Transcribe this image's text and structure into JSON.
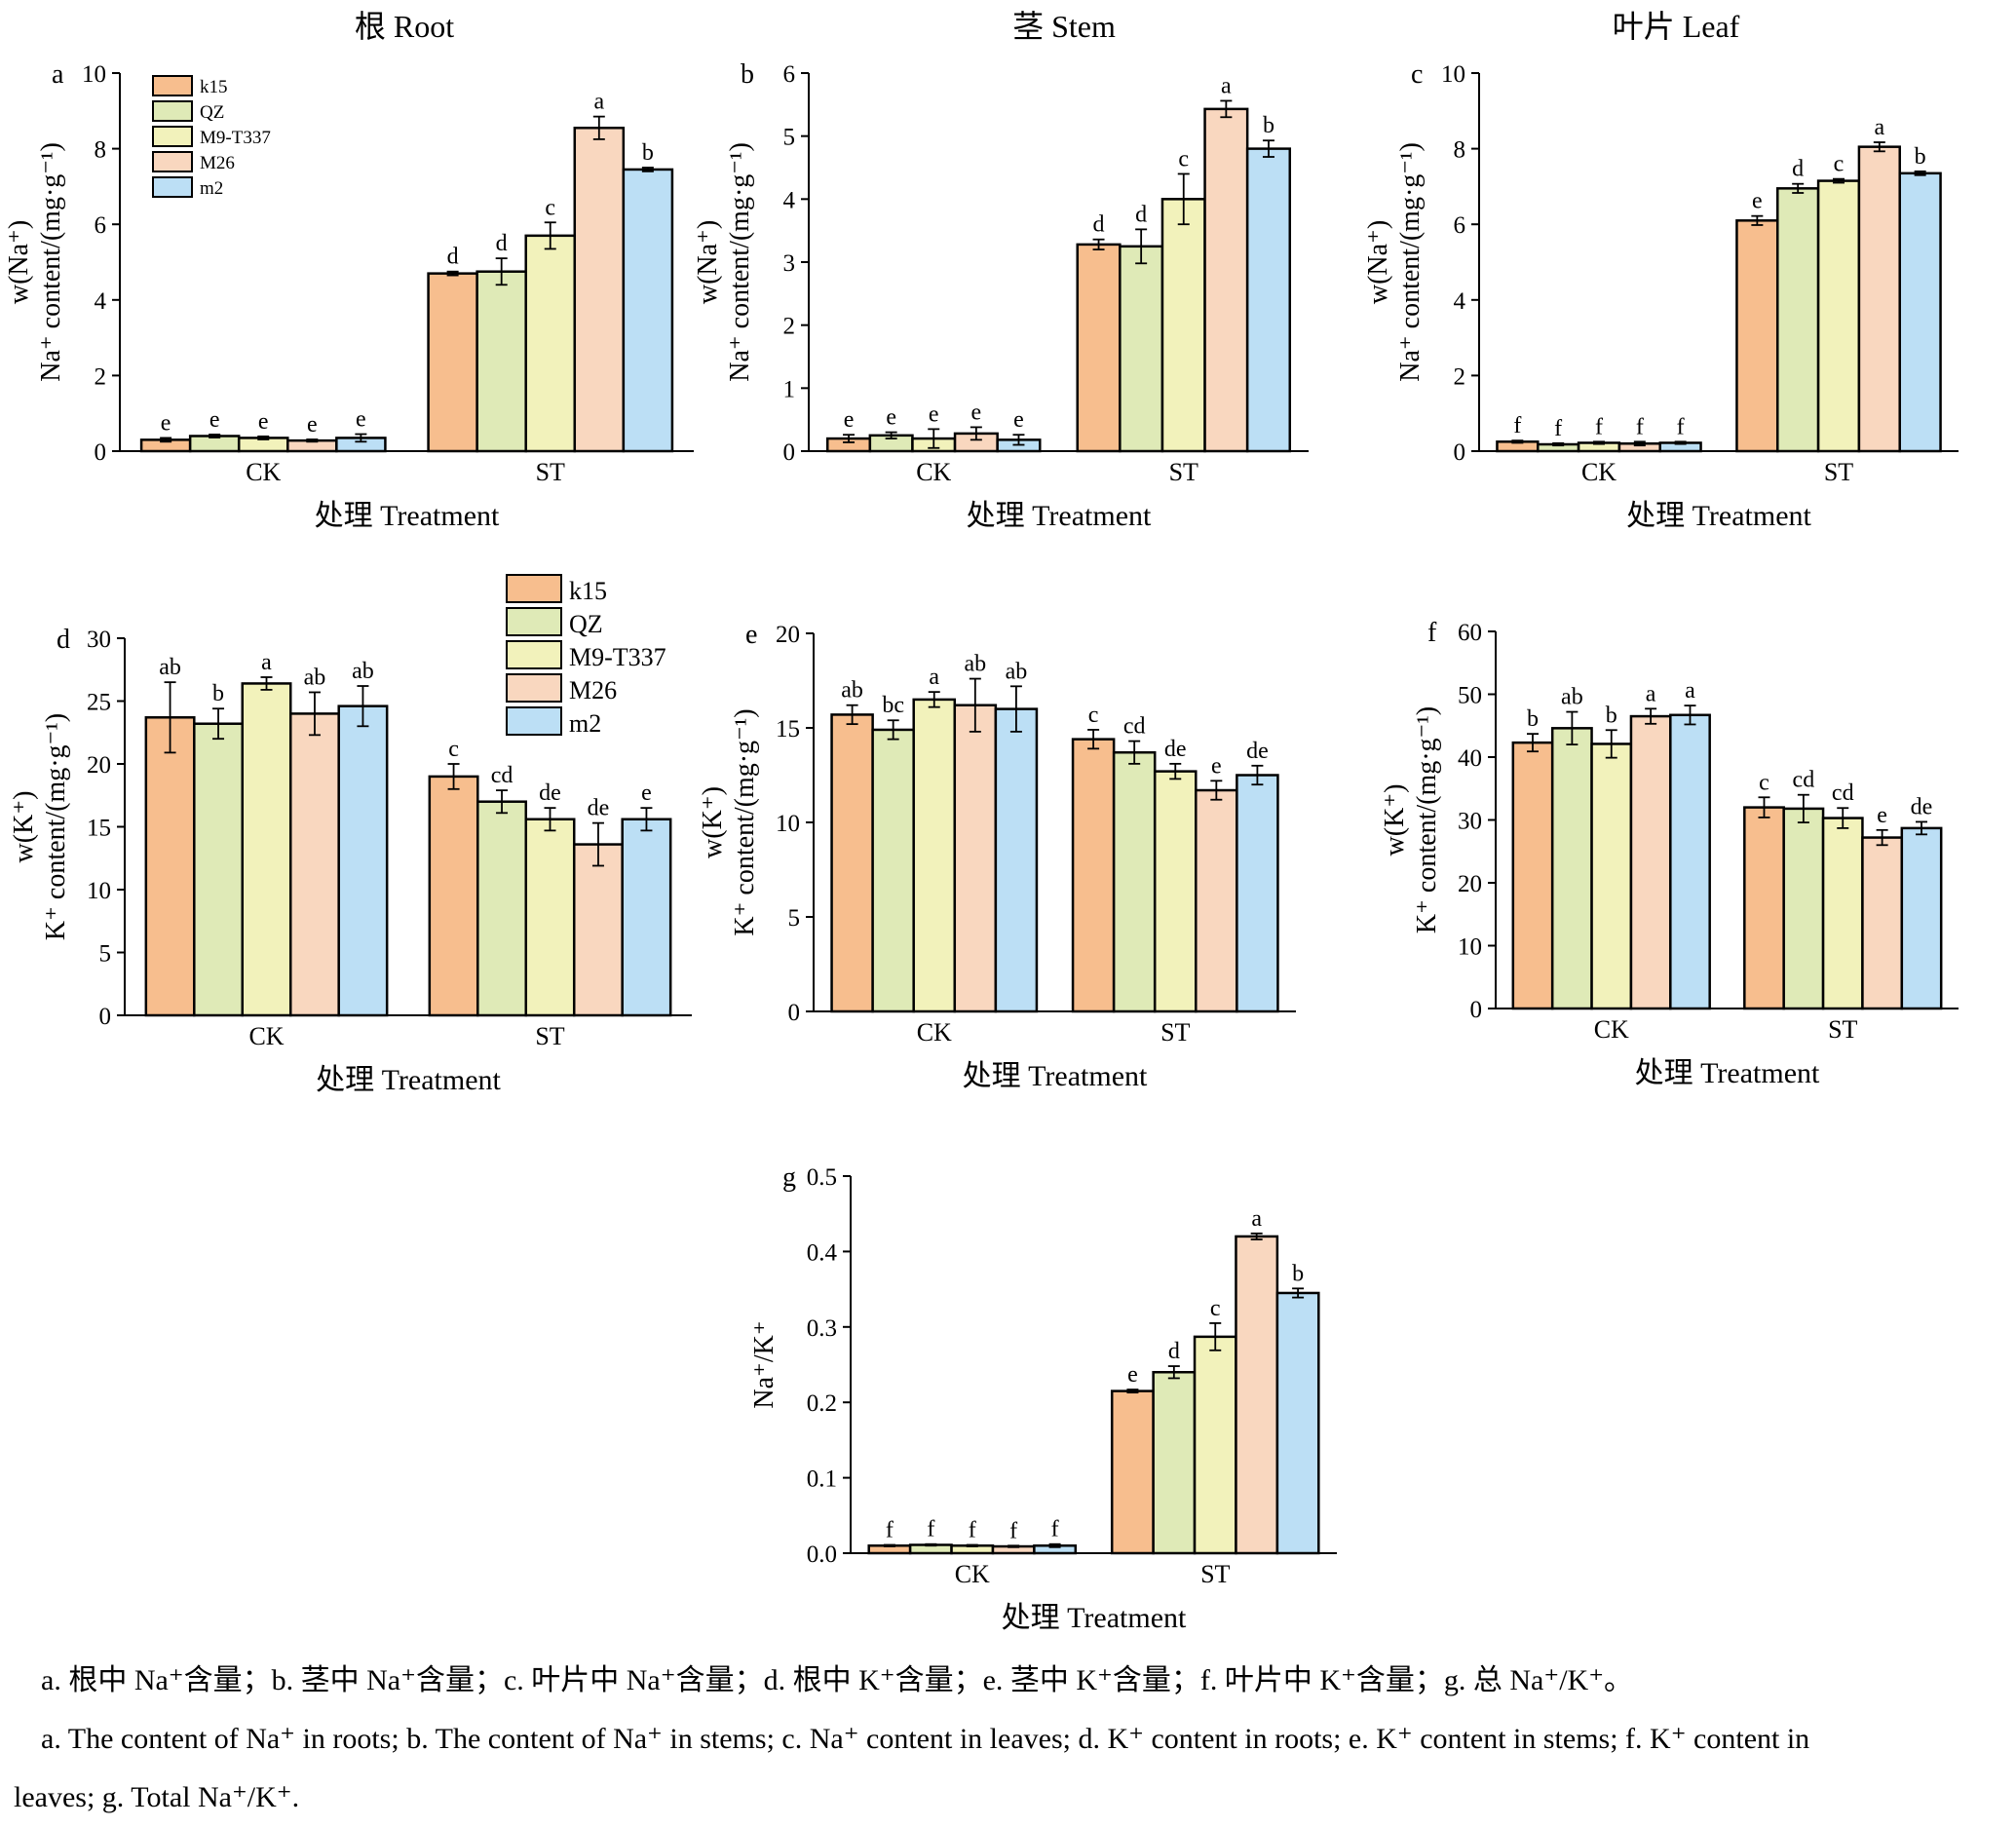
{
  "colors": {
    "k15": "#f7be8e",
    "QZ": "#dfeab7",
    "M9-T337": "#f2f2bb",
    "M26": "#f9d7bf",
    "m2": "#bcdff5"
  },
  "column_titles": [
    "根 Root",
    "茎 Stem",
    "叶片 Leaf"
  ],
  "captions": {
    "zh": "a. 根中 Na⁺含量；b. 茎中 Na⁺含量；c. 叶片中 Na⁺含量；d. 根中 K⁺含量；e. 茎中 K⁺含量；f. 叶片中 K⁺含量；g. 总 Na⁺/K⁺。",
    "en_line1": "a. The content of Na⁺ in roots; b. The content of Na⁺ in stems; c. Na⁺ content in leaves; d. K⁺ content in roots; e. K⁺ content in stems; f. K⁺ content in",
    "en_line2": "leaves; g. Total Na⁺/K⁺."
  },
  "chart_data": [
    {
      "id": "a",
      "type": "bar",
      "panel_label": "a",
      "ylabel_line1": "w(Na⁺)",
      "ylabel_line2": "Na⁺ content/(mg·g⁻¹)",
      "xlabel": "处理 Treatment",
      "categories": [
        "CK",
        "ST"
      ],
      "ylim": [
        0,
        10
      ],
      "yticks": [
        0,
        2,
        4,
        6,
        8,
        10
      ],
      "legend": [
        "k15",
        "QZ",
        "M9-T337",
        "M26",
        "m2"
      ],
      "series": [
        {
          "name": "k15",
          "values": [
            0.3,
            4.7
          ],
          "errors": [
            0.05,
            0.05
          ],
          "letters": [
            "e",
            "d"
          ]
        },
        {
          "name": "QZ",
          "values": [
            0.4,
            4.75
          ],
          "errors": [
            0.04,
            0.35
          ],
          "letters": [
            "e",
            "d"
          ]
        },
        {
          "name": "M9-T337",
          "values": [
            0.35,
            5.7
          ],
          "errors": [
            0.04,
            0.35
          ],
          "letters": [
            "e",
            "c"
          ]
        },
        {
          "name": "M26",
          "values": [
            0.28,
            8.55
          ],
          "errors": [
            0.03,
            0.3
          ],
          "letters": [
            "e",
            "a"
          ]
        },
        {
          "name": "m2",
          "values": [
            0.35,
            7.45
          ],
          "errors": [
            0.1,
            0.05
          ],
          "letters": [
            "e",
            "b"
          ]
        }
      ]
    },
    {
      "id": "b",
      "type": "bar",
      "panel_label": "b",
      "ylabel_line1": "w(Na⁺)",
      "ylabel_line2": "Na⁺ content/(mg·g⁻¹)",
      "xlabel": "处理 Treatment",
      "categories": [
        "CK",
        "ST"
      ],
      "ylim": [
        0,
        6
      ],
      "yticks": [
        0,
        1,
        2,
        3,
        4,
        5,
        6
      ],
      "series": [
        {
          "name": "k15",
          "values": [
            0.2,
            3.28
          ],
          "errors": [
            0.06,
            0.08
          ],
          "letters": [
            "e",
            "d"
          ]
        },
        {
          "name": "QZ",
          "values": [
            0.25,
            3.25
          ],
          "errors": [
            0.05,
            0.27
          ],
          "letters": [
            "e",
            "d"
          ]
        },
        {
          "name": "M9-T337",
          "values": [
            0.2,
            4.0
          ],
          "errors": [
            0.15,
            0.4
          ],
          "letters": [
            "e",
            "c"
          ]
        },
        {
          "name": "M26",
          "values": [
            0.28,
            5.43
          ],
          "errors": [
            0.1,
            0.13
          ],
          "letters": [
            "e",
            "a"
          ]
        },
        {
          "name": "m2",
          "values": [
            0.18,
            4.8
          ],
          "errors": [
            0.08,
            0.13
          ],
          "letters": [
            "e",
            "b"
          ]
        }
      ]
    },
    {
      "id": "c",
      "type": "bar",
      "panel_label": "c",
      "ylabel_line1": "w(Na⁺)",
      "ylabel_line2": "Na⁺ content/(mg·g⁻¹)",
      "xlabel": "处理 Treatment",
      "categories": [
        "CK",
        "ST"
      ],
      "ylim": [
        0,
        10
      ],
      "yticks": [
        0,
        2,
        4,
        6,
        8,
        10
      ],
      "series": [
        {
          "name": "k15",
          "values": [
            0.25,
            6.1
          ],
          "errors": [
            0.03,
            0.12
          ],
          "letters": [
            "f",
            "e"
          ]
        },
        {
          "name": "QZ",
          "values": [
            0.18,
            6.95
          ],
          "errors": [
            0.03,
            0.12
          ],
          "letters": [
            "f",
            "d"
          ]
        },
        {
          "name": "M9-T337",
          "values": [
            0.22,
            7.15
          ],
          "errors": [
            0.03,
            0.05
          ],
          "letters": [
            "f",
            "c"
          ]
        },
        {
          "name": "M26",
          "values": [
            0.2,
            8.05
          ],
          "errors": [
            0.05,
            0.12
          ],
          "letters": [
            "f",
            "a"
          ]
        },
        {
          "name": "m2",
          "values": [
            0.22,
            7.35
          ],
          "errors": [
            0.03,
            0.05
          ],
          "letters": [
            "f",
            "b"
          ]
        }
      ]
    },
    {
      "id": "d",
      "type": "bar",
      "panel_label": "d",
      "ylabel_line1": "w(K⁺)",
      "ylabel_line2": "K⁺ content/(mg·g⁻¹)",
      "xlabel": "处理 Treatment",
      "categories": [
        "CK",
        "ST"
      ],
      "ylim": [
        0,
        30
      ],
      "yticks": [
        0,
        5,
        10,
        15,
        20,
        25,
        30
      ],
      "legend": [
        "k15",
        "QZ",
        "M9-T337",
        "M26",
        "m2"
      ],
      "series": [
        {
          "name": "k15",
          "values": [
            23.7,
            19.0
          ],
          "errors": [
            2.8,
            1.0
          ],
          "letters": [
            "ab",
            "c"
          ]
        },
        {
          "name": "QZ",
          "values": [
            23.2,
            17.0
          ],
          "errors": [
            1.2,
            0.9
          ],
          "letters": [
            "b",
            "cd"
          ]
        },
        {
          "name": "M9-T337",
          "values": [
            26.4,
            15.6
          ],
          "errors": [
            0.5,
            0.9
          ],
          "letters": [
            "a",
            "de"
          ]
        },
        {
          "name": "M26",
          "values": [
            24.0,
            13.6
          ],
          "errors": [
            1.7,
            1.7
          ],
          "letters": [
            "ab",
            "de"
          ]
        },
        {
          "name": "m2",
          "values": [
            24.6,
            15.6
          ],
          "errors": [
            1.6,
            0.9
          ],
          "letters": [
            "ab",
            "e"
          ]
        }
      ]
    },
    {
      "id": "e",
      "type": "bar",
      "panel_label": "e",
      "ylabel_line1": "w(K⁺)",
      "ylabel_line2": "K⁺ content/(mg·g⁻¹)",
      "xlabel": "处理 Treatment",
      "categories": [
        "CK",
        "ST"
      ],
      "ylim": [
        0,
        20
      ],
      "yticks": [
        0,
        5,
        10,
        15,
        20
      ],
      "series": [
        {
          "name": "k15",
          "values": [
            15.7,
            14.4
          ],
          "errors": [
            0.5,
            0.5
          ],
          "letters": [
            "ab",
            "c"
          ]
        },
        {
          "name": "QZ",
          "values": [
            14.9,
            13.7
          ],
          "errors": [
            0.5,
            0.6
          ],
          "letters": [
            "bc",
            "cd"
          ]
        },
        {
          "name": "M9-T337",
          "values": [
            16.5,
            12.7
          ],
          "errors": [
            0.4,
            0.4
          ],
          "letters": [
            "a",
            "de"
          ]
        },
        {
          "name": "M26",
          "values": [
            16.2,
            11.7
          ],
          "errors": [
            1.4,
            0.5
          ],
          "letters": [
            "ab",
            "e"
          ]
        },
        {
          "name": "m2",
          "values": [
            16.0,
            12.5
          ],
          "errors": [
            1.2,
            0.5
          ],
          "letters": [
            "ab",
            "de"
          ]
        }
      ]
    },
    {
      "id": "f",
      "type": "bar",
      "panel_label": "f",
      "ylabel_line1": "w(K⁺)",
      "ylabel_line2": "K⁺ content/(mg·g⁻¹)",
      "xlabel": "处理 Treatment",
      "categories": [
        "CK",
        "ST"
      ],
      "ylim": [
        0,
        60
      ],
      "yticks": [
        0,
        10,
        20,
        30,
        40,
        50,
        60
      ],
      "series": [
        {
          "name": "k15",
          "values": [
            42.3,
            32.0
          ],
          "errors": [
            1.4,
            1.6
          ],
          "letters": [
            "b",
            "c"
          ]
        },
        {
          "name": "QZ",
          "values": [
            44.6,
            31.8
          ],
          "errors": [
            2.6,
            2.2
          ],
          "letters": [
            "ab",
            "cd"
          ]
        },
        {
          "name": "M9-T337",
          "values": [
            42.1,
            30.3
          ],
          "errors": [
            2.2,
            1.6
          ],
          "letters": [
            "b",
            "cd"
          ]
        },
        {
          "name": "M26",
          "values": [
            46.5,
            27.2
          ],
          "errors": [
            1.2,
            1.2
          ],
          "letters": [
            "a",
            "e"
          ]
        },
        {
          "name": "m2",
          "values": [
            46.7,
            28.7
          ],
          "errors": [
            1.5,
            1.0
          ],
          "letters": [
            "a",
            "de"
          ]
        }
      ]
    },
    {
      "id": "g",
      "type": "bar",
      "panel_label": "g",
      "ylabel_line1": "Na⁺/K⁺",
      "ylabel_line2": "",
      "xlabel": "处理 Treatment",
      "categories": [
        "CK",
        "ST"
      ],
      "ylim": [
        0,
        0.5
      ],
      "yticks": [
        0.0,
        0.1,
        0.2,
        0.3,
        0.4,
        0.5
      ],
      "tick_decimals": 1,
      "series": [
        {
          "name": "k15",
          "values": [
            0.01,
            0.215
          ],
          "errors": [
            0.001,
            0.002
          ],
          "letters": [
            "f",
            "e"
          ]
        },
        {
          "name": "QZ",
          "values": [
            0.011,
            0.24
          ],
          "errors": [
            0.001,
            0.008
          ],
          "letters": [
            "f",
            "d"
          ]
        },
        {
          "name": "M9-T337",
          "values": [
            0.01,
            0.287
          ],
          "errors": [
            0.001,
            0.018
          ],
          "letters": [
            "f",
            "c"
          ]
        },
        {
          "name": "M26",
          "values": [
            0.009,
            0.42
          ],
          "errors": [
            0.001,
            0.004
          ],
          "letters": [
            "f",
            "a"
          ]
        },
        {
          "name": "m2",
          "values": [
            0.01,
            0.345
          ],
          "errors": [
            0.002,
            0.006
          ],
          "letters": [
            "f",
            "b"
          ]
        }
      ]
    }
  ]
}
